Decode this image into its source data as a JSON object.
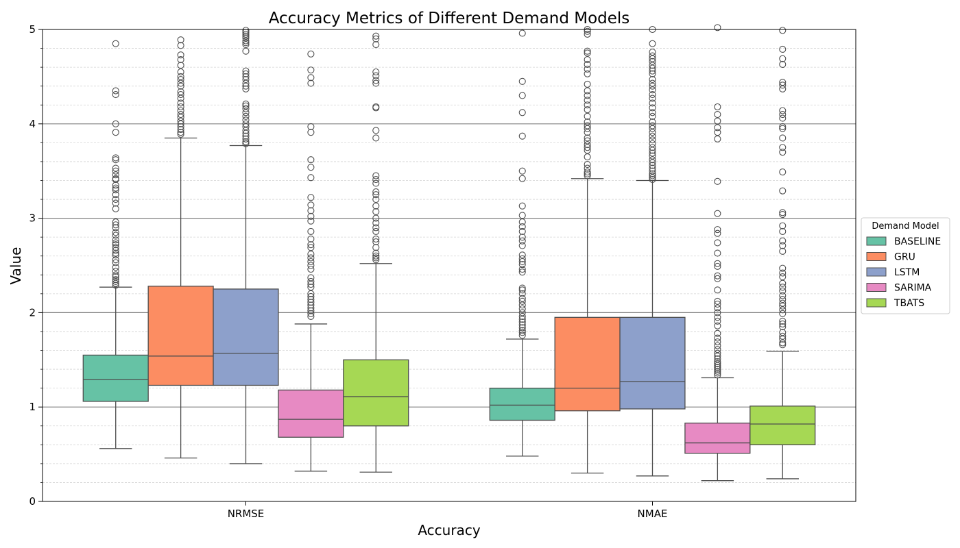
{
  "chart_data": {
    "type": "box",
    "title": "Accuracy Metrics of Different Demand Models",
    "xlabel": "Accuracy",
    "ylabel": "Value",
    "categories": [
      "NRMSE",
      "NMAE"
    ],
    "ylim": [
      0,
      5
    ],
    "yticks": [
      0,
      1,
      2,
      3,
      4,
      5
    ],
    "grid": {
      "major_y": true,
      "minor_y": true
    },
    "legend": {
      "title": "Demand Model",
      "position": "right"
    },
    "series": [
      {
        "name": "BASELINE",
        "color": "#66c2a5",
        "boxes": [
          {
            "category": "NRMSE",
            "whisker_low": 0.56,
            "q1": 1.06,
            "median": 1.29,
            "q3": 1.55,
            "whisker_high": 2.27,
            "outliers": [
              4.85,
              4.35,
              4.31,
              4.0,
              3.91,
              3.64,
              3.62,
              3.53,
              3.5,
              3.46,
              3.42,
              3.41,
              3.35,
              3.32,
              3.3,
              3.25,
              3.2,
              3.16,
              3.1,
              2.96,
              2.93,
              2.9,
              2.85,
              2.82,
              2.77,
              2.74,
              2.72,
              2.69,
              2.66,
              2.63,
              2.61,
              2.56,
              2.53,
              2.48,
              2.44,
              2.4,
              2.38,
              2.35,
              2.33,
              2.31,
              2.29
            ]
          },
          {
            "category": "NMAE",
            "whisker_low": 0.48,
            "q1": 0.86,
            "median": 1.02,
            "q3": 1.2,
            "whisker_high": 1.72,
            "outliers": [
              4.96,
              4.45,
              4.3,
              4.12,
              3.87,
              3.5,
              3.42,
              3.13,
              3.03,
              2.96,
              2.91,
              2.86,
              2.8,
              2.76,
              2.71,
              2.61,
              2.57,
              2.54,
              2.51,
              2.46,
              2.43,
              2.26,
              2.24,
              2.2,
              2.15,
              2.12,
              2.08,
              2.04,
              2.0,
              1.96,
              1.93,
              1.9,
              1.87,
              1.84,
              1.81,
              1.79,
              1.76
            ]
          }
        ]
      },
      {
        "name": "GRU",
        "color": "#fc8d62",
        "boxes": [
          {
            "category": "NRMSE",
            "whisker_low": 0.46,
            "q1": 1.23,
            "median": 1.54,
            "q3": 2.28,
            "whisker_high": 3.85,
            "outliers": [
              4.89,
              4.83,
              4.73,
              4.68,
              4.62,
              4.55,
              4.5,
              4.47,
              4.43,
              4.4,
              4.34,
              4.31,
              4.27,
              4.22,
              4.18,
              4.14,
              4.1,
              4.07,
              4.03,
              4.0,
              3.97,
              3.94,
              3.91,
              3.89
            ]
          },
          {
            "category": "NMAE",
            "whisker_low": 0.3,
            "q1": 0.96,
            "median": 1.2,
            "q3": 1.95,
            "whisker_high": 3.42,
            "outliers": [
              5.0,
              4.98,
              4.95,
              4.77,
              4.75,
              4.68,
              4.63,
              4.58,
              4.53,
              4.42,
              4.35,
              4.3,
              4.25,
              4.2,
              4.15,
              4.08,
              4.02,
              3.98,
              3.95,
              3.91,
              3.85,
              3.82,
              3.78,
              3.75,
              3.72,
              3.65,
              3.57,
              3.53,
              3.49,
              3.47,
              3.45
            ]
          }
        ]
      },
      {
        "name": "LSTM",
        "color": "#8da0cb",
        "boxes": [
          {
            "category": "NRMSE",
            "whisker_low": 0.4,
            "q1": 1.23,
            "median": 1.57,
            "q3": 2.25,
            "whisker_high": 3.77,
            "outliers": [
              4.99,
              4.97,
              4.95,
              4.93,
              4.91,
              4.88,
              4.86,
              4.84,
              4.77,
              4.56,
              4.53,
              4.5,
              4.47,
              4.43,
              4.4,
              4.37,
              4.21,
              4.19,
              4.16,
              4.12,
              4.08,
              4.04,
              4.0,
              3.97,
              3.93,
              3.9,
              3.87,
              3.84,
              3.81,
              3.79
            ]
          },
          {
            "category": "NMAE",
            "whisker_low": 0.27,
            "q1": 0.98,
            "median": 1.27,
            "q3": 1.95,
            "whisker_high": 3.4,
            "outliers": [
              5.0,
              4.85,
              4.76,
              4.72,
              4.69,
              4.66,
              4.62,
              4.59,
              4.56,
              4.53,
              4.47,
              4.43,
              4.4,
              4.36,
              4.31,
              4.27,
              4.22,
              4.17,
              4.12,
              4.08,
              4.02,
              3.98,
              3.95,
              3.91,
              3.87,
              3.83,
              3.79,
              3.75,
              3.72,
              3.69,
              3.66,
              3.62,
              3.59,
              3.56,
              3.53,
              3.5,
              3.47,
              3.45,
              3.43,
              3.41
            ]
          }
        ]
      },
      {
        "name": "SARIMA",
        "color": "#e78ac3",
        "boxes": [
          {
            "category": "NRMSE",
            "whisker_low": 0.32,
            "q1": 0.68,
            "median": 0.87,
            "q3": 1.18,
            "whisker_high": 1.88,
            "outliers": [
              4.74,
              4.57,
              4.49,
              4.43,
              3.97,
              3.91,
              3.62,
              3.54,
              3.43,
              3.22,
              3.14,
              3.08,
              3.02,
              2.97,
              2.86,
              2.78,
              2.72,
              2.69,
              2.62,
              2.58,
              2.54,
              2.5,
              2.46,
              2.37,
              2.33,
              2.3,
              2.27,
              2.2,
              2.17,
              2.14,
              2.11,
              2.08,
              2.05,
              2.02,
              1.99,
              1.96
            ]
          },
          {
            "category": "NMAE",
            "whisker_low": 0.22,
            "q1": 0.51,
            "median": 0.62,
            "q3": 0.83,
            "whisker_high": 1.31,
            "outliers": [
              5.02,
              4.18,
              4.1,
              4.03,
              3.96,
              3.91,
              3.84,
              3.39,
              3.05,
              2.88,
              2.84,
              2.74,
              2.63,
              2.52,
              2.49,
              2.39,
              2.36,
              2.24,
              2.12,
              2.09,
              2.05,
              2.0,
              1.95,
              1.91,
              1.86,
              1.78,
              1.73,
              1.69,
              1.65,
              1.61,
              1.57,
              1.54,
              1.51,
              1.48,
              1.46,
              1.44,
              1.42,
              1.4,
              1.38,
              1.36,
              1.34
            ]
          }
        ]
      },
      {
        "name": "TBATS",
        "color": "#a6d854",
        "boxes": [
          {
            "category": "NRMSE",
            "whisker_low": 0.31,
            "q1": 0.8,
            "median": 1.11,
            "q3": 1.5,
            "whisker_high": 2.52,
            "outliers": [
              4.93,
              4.9,
              4.84,
              4.55,
              4.51,
              4.46,
              4.43,
              4.18,
              4.17,
              3.93,
              3.85,
              3.45,
              3.41,
              3.37,
              3.28,
              3.25,
              3.2,
              3.13,
              3.07,
              3.0,
              2.95,
              2.9,
              2.86,
              2.78,
              2.75,
              2.69,
              2.63,
              2.6,
              2.58,
              2.56
            ]
          },
          {
            "category": "NMAE",
            "whisker_low": 0.24,
            "q1": 0.6,
            "median": 0.82,
            "q3": 1.01,
            "whisker_high": 1.59,
            "outliers": [
              4.99,
              4.79,
              4.69,
              4.63,
              4.44,
              4.41,
              4.37,
              4.14,
              4.1,
              4.06,
              3.97,
              3.95,
              3.85,
              3.75,
              3.7,
              3.49,
              3.29,
              3.06,
              3.04,
              2.92,
              2.86,
              2.76,
              2.71,
              2.65,
              2.47,
              2.42,
              2.38,
              2.31,
              2.27,
              2.23,
              2.18,
              2.14,
              2.1,
              2.07,
              2.03,
              1.99,
              1.91,
              1.88,
              1.85,
              1.79,
              1.75,
              1.72,
              1.68,
              1.66
            ]
          }
        ]
      }
    ]
  }
}
